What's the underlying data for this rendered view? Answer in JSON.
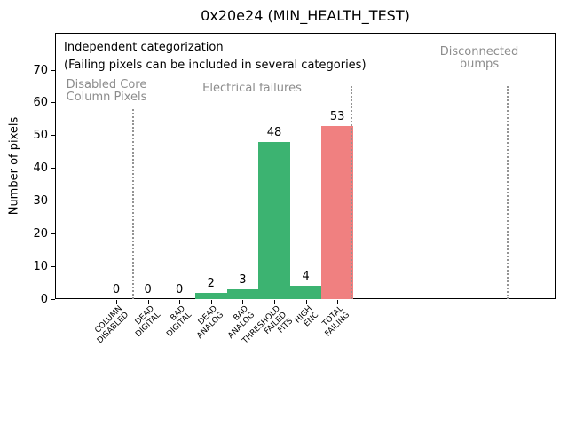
{
  "chart_data": {
    "type": "bar",
    "title": "0x20e24 (MIN_HEALTH_TEST)",
    "xlabel": "",
    "ylabel": "Number of pixels",
    "ylim": [
      0,
      81.4
    ],
    "yticks": [
      0,
      10,
      20,
      30,
      40,
      50,
      60,
      70
    ],
    "grid": false,
    "legend": "none",
    "categories": [
      "COLUMN\nDISABLED",
      "DEAD\nDIGITAL",
      "BAD\nDIGITAL",
      "DEAD\nANALOG",
      "BAD\nANALOG",
      "THRESHOLD\nFAILED\nFITS",
      "HIGH\nENC",
      "TOTAL\nFAILING"
    ],
    "values": [
      0,
      0,
      0,
      2,
      3,
      48,
      4,
      53
    ],
    "bar_colors": [
      "#3cb371",
      "#3cb371",
      "#3cb371",
      "#3cb371",
      "#3cb371",
      "#3cb371",
      "#3cb371",
      "#f08080"
    ],
    "annotations": {
      "note_line1": "Independent categorization",
      "note_line2": "(Failing pixels can be included in several categories)",
      "sections": [
        {
          "label": "Disabled Core\nColumn Pixels"
        },
        {
          "label": "Electrical failures"
        },
        {
          "label": "Disconnected\nbumps"
        }
      ]
    },
    "colors": {
      "bar_green": "#3cb371",
      "bar_red": "#f08080",
      "muted_gray": "#8c8c8c",
      "axis_black": "#000000"
    }
  }
}
